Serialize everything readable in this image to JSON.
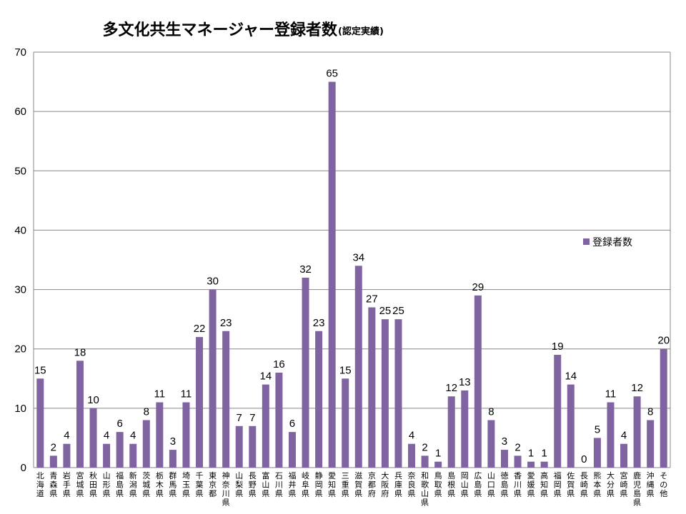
{
  "chart_data": {
    "type": "bar",
    "title": "多文化共生マネージャー登録者数",
    "subtitle": "(認定実績)",
    "ylim": [
      0,
      70
    ],
    "yticks": [
      0,
      10,
      20,
      30,
      40,
      50,
      60,
      70
    ],
    "grid": true,
    "legend_position": "right",
    "bar_color": "#8064A2",
    "categories": [
      "北海道",
      "青森県",
      "岩手県",
      "宮城県",
      "秋田県",
      "山形県",
      "福島県",
      "新潟県",
      "茨城県",
      "栃木県",
      "群馬県",
      "埼玉県",
      "千葉県",
      "東京都",
      "神奈川県",
      "山梨県",
      "長野県",
      "富山県",
      "石川県",
      "福井県",
      "岐阜県",
      "静岡県",
      "愛知県",
      "三重県",
      "滋賀県",
      "京都府",
      "大阪府",
      "兵庫県",
      "奈良県",
      "和歌山県",
      "鳥取県",
      "島根県",
      "岡山県",
      "広島県",
      "山口県",
      "徳島県",
      "香川県",
      "愛媛県",
      "高知県",
      "福岡県",
      "佐賀県",
      "長崎県",
      "熊本県",
      "大分県",
      "宮崎県",
      "鹿児島県",
      "沖縄県",
      "その他"
    ],
    "series": [
      {
        "name": "登録者数",
        "values": [
          15,
          2,
          4,
          18,
          10,
          4,
          6,
          4,
          8,
          11,
          3,
          11,
          22,
          30,
          23,
          7,
          7,
          14,
          16,
          6,
          32,
          23,
          65,
          15,
          34,
          27,
          25,
          25,
          4,
          2,
          1,
          12,
          13,
          29,
          8,
          3,
          2,
          1,
          1,
          19,
          14,
          0,
          5,
          11,
          4,
          12,
          8,
          20
        ]
      }
    ]
  }
}
